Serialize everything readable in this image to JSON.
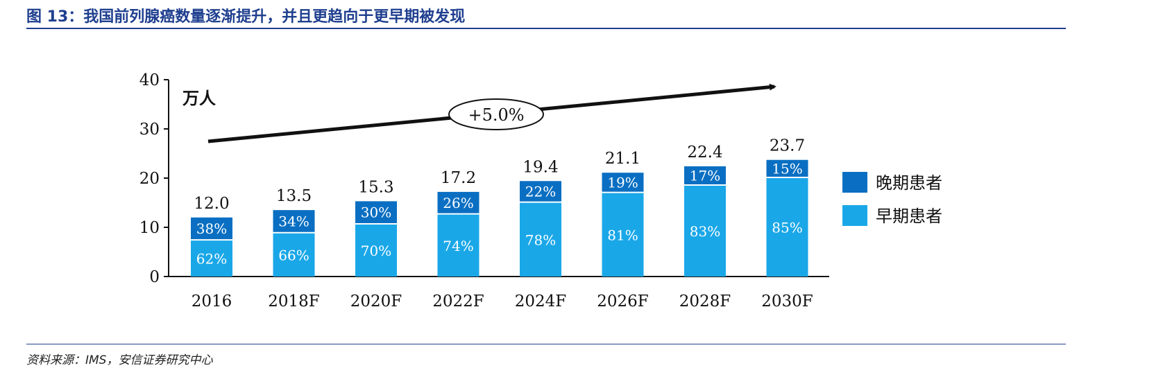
{
  "figure": {
    "title": "图 13：我国前列腺癌数量逐渐提升，并且更趋向于更早期被发现",
    "source": "资料来源：IMS，安信证券研究中心"
  },
  "chart_data": {
    "type": "bar",
    "stacked": true,
    "unit_label": "万人",
    "categories": [
      "2016",
      "2018F",
      "2020F",
      "2022F",
      "2024F",
      "2026F",
      "2028F",
      "2030F"
    ],
    "totals": [
      12.0,
      13.5,
      15.3,
      17.2,
      19.4,
      21.1,
      22.4,
      23.7
    ],
    "total_labels": [
      "12.0",
      "13.5",
      "15.3",
      "17.2",
      "19.4",
      "21.1",
      "22.4",
      "23.7"
    ],
    "series": [
      {
        "name": "早期患者",
        "share_labels": [
          "62%",
          "66%",
          "70%",
          "74%",
          "78%",
          "81%",
          "83%",
          "85%"
        ],
        "shares": [
          0.62,
          0.66,
          0.7,
          0.74,
          0.78,
          0.81,
          0.83,
          0.85
        ],
        "color": "#1aa7e8"
      },
      {
        "name": "晚期患者",
        "share_labels": [
          "38%",
          "34%",
          "30%",
          "26%",
          "22%",
          "19%",
          "17%",
          "15%"
        ],
        "shares": [
          0.38,
          0.34,
          0.3,
          0.26,
          0.22,
          0.19,
          0.17,
          0.15
        ],
        "color": "#0a6fc2"
      }
    ],
    "ylim": [
      0,
      40
    ],
    "yticks": [
      "0",
      "10",
      "20",
      "30",
      "40"
    ],
    "ytick_values": [
      0,
      10,
      20,
      30,
      40
    ],
    "annotation": "+5.0%",
    "legend_placement": "right"
  }
}
